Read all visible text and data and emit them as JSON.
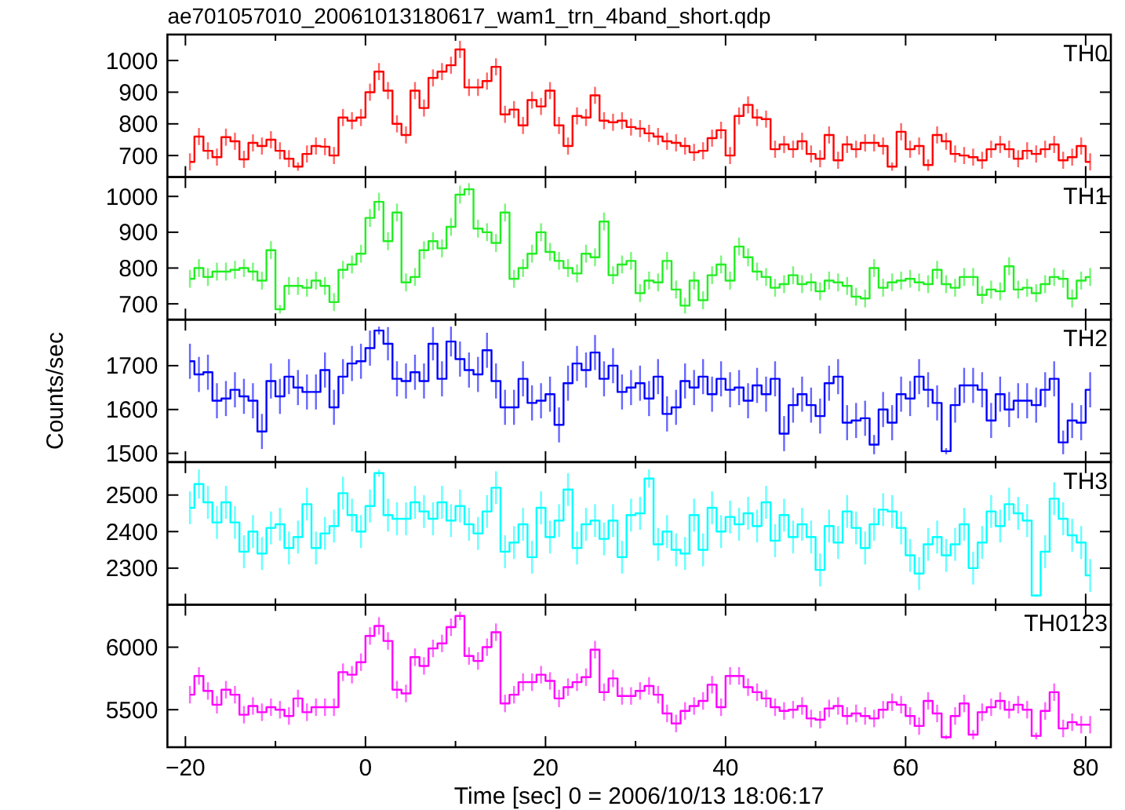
{
  "chart_data": [
    {
      "type": "step",
      "title": "ae701057010_20061013180617_wam1_trn_4band_short.qdp",
      "x": [
        -19.5,
        -18.5,
        -17.5,
        -16.5,
        -15.5,
        -14.5,
        -13.5,
        -12.5,
        -11.5,
        -10.5,
        -9.5,
        -8.5,
        -7.5,
        -6.5,
        -5.5,
        -4.5,
        -3.5,
        -2.5,
        -1.5,
        -0.5,
        0.5,
        1.5,
        2.5,
        3.5,
        4.5,
        5.5,
        6.5,
        7.5,
        8.5,
        9.5,
        10.5,
        11.5,
        12.5,
        13.5,
        14.5,
        15.5,
        16.5,
        17.5,
        18.5,
        19.5,
        20.5,
        21.5,
        22.5,
        23.5,
        24.5,
        25.5,
        26.5,
        27.5,
        28.5,
        29.5,
        30.5,
        31.5,
        32.5,
        33.5,
        34.5,
        35.5,
        36.5,
        37.5,
        38.5,
        39.5,
        40.5,
        41.5,
        42.5,
        43.5,
        44.5,
        45.5,
        46.5,
        47.5,
        48.5,
        49.5,
        50.5,
        51.5,
        52.5,
        53.5,
        54.5,
        55.5,
        56.5,
        57.5,
        58.5,
        59.5,
        60.5,
        61.5,
        62.5,
        63.5,
        64.5,
        65.5,
        66.5,
        67.5,
        68.5,
        69.5,
        70.5,
        71.5,
        72.5,
        73.5,
        74.5,
        75.5,
        76.5,
        77.5,
        78.5,
        79.5,
        80.5
      ],
      "series": [
        {
          "name": "TH0",
          "color": "#ff0000",
          "values": [
            680,
            760,
            715,
            695,
            758,
            745,
            688,
            740,
            730,
            750,
            715,
            690,
            665,
            705,
            730,
            728,
            700,
            820,
            810,
            820,
            900,
            965,
            905,
            800,
            765,
            905,
            850,
            945,
            965,
            985,
            1035,
            915,
            915,
            935,
            980,
            830,
            845,
            795,
            875,
            855,
            905,
            795,
            730,
            825,
            820,
            890,
            810,
            805,
            810,
            790,
            785,
            770,
            760,
            745,
            740,
            730,
            710,
            715,
            755,
            780,
            700,
            825,
            860,
            820,
            815,
            720,
            735,
            720,
            745,
            705,
            690,
            765,
            685,
            735,
            720,
            740,
            740,
            730,
            665,
            775,
            720,
            730,
            670,
            765,
            745,
            705,
            700,
            695,
            685,
            720,
            735,
            720,
            690,
            715,
            705,
            720,
            735,
            685,
            695,
            730,
            680
          ],
          "errors": [
            27,
            27,
            27,
            27,
            27,
            27,
            27,
            27,
            27,
            27,
            27,
            27,
            13,
            27,
            27,
            27,
            27,
            27,
            27,
            27,
            27,
            27,
            27,
            27,
            27,
            27,
            27,
            27,
            27,
            27,
            27,
            27,
            27,
            27,
            27,
            27,
            27,
            27,
            27,
            27,
            27,
            27,
            27,
            27,
            27,
            27,
            27,
            27,
            27,
            27,
            27,
            27,
            27,
            27,
            27,
            27,
            27,
            27,
            27,
            27,
            27,
            27,
            27,
            27,
            27,
            27,
            27,
            27,
            27,
            27,
            27,
            27,
            27,
            27,
            27,
            27,
            27,
            27,
            13,
            27,
            27,
            27,
            18,
            27,
            27,
            27,
            27,
            27,
            27,
            27,
            27,
            27,
            27,
            27,
            27,
            27,
            27,
            27,
            27,
            27,
            27
          ]
        }
      ],
      "xlim": [
        -22,
        82.8
      ],
      "xticks": [
        -20,
        {
          "value": -10,
          "label": null
        },
        0,
        {
          "value": 10,
          "label": null
        },
        20,
        {
          "value": 30,
          "label": null
        },
        40,
        {
          "value": 50,
          "label": null
        },
        60,
        {
          "value": 70,
          "label": null
        },
        80
      ],
      "ylim": [
        632,
        1082
      ],
      "yticks": [
        700,
        800,
        900,
        1000
      ],
      "tick_labels": "y"
    },
    {
      "type": "step",
      "x": [
        -19.5,
        -18.5,
        -17.5,
        -16.5,
        -15.5,
        -14.5,
        -13.5,
        -12.5,
        -11.5,
        -10.5,
        -9.5,
        -8.5,
        -7.5,
        -6.5,
        -5.5,
        -4.5,
        -3.5,
        -2.5,
        -1.5,
        -0.5,
        0.5,
        1.5,
        2.5,
        3.5,
        4.5,
        5.5,
        6.5,
        7.5,
        8.5,
        9.5,
        10.5,
        11.5,
        12.5,
        13.5,
        14.5,
        15.5,
        16.5,
        17.5,
        18.5,
        19.5,
        20.5,
        21.5,
        22.5,
        23.5,
        24.5,
        25.5,
        26.5,
        27.5,
        28.5,
        29.5,
        30.5,
        31.5,
        32.5,
        33.5,
        34.5,
        35.5,
        36.5,
        37.5,
        38.5,
        39.5,
        40.5,
        41.5,
        42.5,
        43.5,
        44.5,
        45.5,
        46.5,
        47.5,
        48.5,
        49.5,
        50.5,
        51.5,
        52.5,
        53.5,
        54.5,
        55.5,
        56.5,
        57.5,
        58.5,
        59.5,
        60.5,
        61.5,
        62.5,
        63.5,
        64.5,
        65.5,
        66.5,
        67.5,
        68.5,
        69.5,
        70.5,
        71.5,
        72.5,
        73.5,
        74.5,
        75.5,
        76.5,
        77.5,
        78.5,
        79.5,
        80.5
      ],
      "series": [
        {
          "name": "TH1",
          "color": "#22ee22",
          "values": [
            770,
            800,
            775,
            790,
            790,
            795,
            800,
            790,
            765,
            850,
            685,
            750,
            750,
            745,
            765,
            750,
            705,
            795,
            810,
            840,
            940,
            985,
            875,
            955,
            760,
            775,
            850,
            875,
            855,
            915,
            1005,
            1020,
            910,
            900,
            870,
            955,
            770,
            800,
            840,
            900,
            845,
            820,
            800,
            785,
            840,
            830,
            930,
            780,
            810,
            820,
            730,
            765,
            760,
            820,
            740,
            695,
            765,
            710,
            780,
            810,
            765,
            860,
            830,
            790,
            775,
            745,
            755,
            780,
            755,
            760,
            735,
            765,
            760,
            750,
            720,
            715,
            800,
            745,
            760,
            765,
            770,
            760,
            755,
            795,
            755,
            745,
            775,
            775,
            725,
            740,
            735,
            805,
            740,
            745,
            730,
            755,
            775,
            770,
            715,
            765,
            775
          ],
          "errors": [
            25,
            25,
            25,
            25,
            25,
            25,
            25,
            25,
            25,
            25,
            12,
            25,
            25,
            25,
            25,
            25,
            25,
            25,
            25,
            25,
            25,
            25,
            25,
            25,
            25,
            25,
            25,
            25,
            25,
            25,
            25,
            17,
            25,
            25,
            25,
            25,
            25,
            25,
            25,
            25,
            25,
            25,
            25,
            25,
            25,
            25,
            25,
            25,
            25,
            25,
            25,
            25,
            25,
            25,
            25,
            22,
            25,
            25,
            25,
            25,
            25,
            25,
            25,
            25,
            25,
            25,
            25,
            25,
            25,
            25,
            25,
            25,
            25,
            25,
            25,
            25,
            25,
            25,
            25,
            25,
            25,
            25,
            25,
            25,
            25,
            25,
            25,
            25,
            25,
            25,
            25,
            25,
            25,
            25,
            25,
            25,
            25,
            25,
            25,
            25,
            25
          ]
        }
      ],
      "xlim": [
        -22,
        82.8
      ],
      "xticks": [
        -20,
        {
          "value": -10,
          "label": null
        },
        0,
        {
          "value": 10,
          "label": null
        },
        20,
        {
          "value": 30,
          "label": null
        },
        40,
        {
          "value": 50,
          "label": null
        },
        60,
        {
          "value": 70,
          "label": null
        },
        80
      ],
      "ylim": [
        656,
        1054
      ],
      "yticks": [
        700,
        800,
        900,
        1000
      ],
      "tick_labels": "y"
    },
    {
      "type": "step",
      "ylabel": "Counts/sec",
      "x": [
        -19.5,
        -18.5,
        -17.5,
        -16.5,
        -15.5,
        -14.5,
        -13.5,
        -12.5,
        -11.5,
        -10.5,
        -9.5,
        -8.5,
        -7.5,
        -6.5,
        -5.5,
        -4.5,
        -3.5,
        -2.5,
        -1.5,
        -0.5,
        0.5,
        1.5,
        2.5,
        3.5,
        4.5,
        5.5,
        6.5,
        7.5,
        8.5,
        9.5,
        10.5,
        11.5,
        12.5,
        13.5,
        14.5,
        15.5,
        16.5,
        17.5,
        18.5,
        19.5,
        20.5,
        21.5,
        22.5,
        23.5,
        24.5,
        25.5,
        26.5,
        27.5,
        28.5,
        29.5,
        30.5,
        31.5,
        32.5,
        33.5,
        34.5,
        35.5,
        36.5,
        37.5,
        38.5,
        39.5,
        40.5,
        41.5,
        42.5,
        43.5,
        44.5,
        45.5,
        46.5,
        47.5,
        48.5,
        49.5,
        50.5,
        51.5,
        52.5,
        53.5,
        54.5,
        55.5,
        56.5,
        57.5,
        58.5,
        59.5,
        60.5,
        61.5,
        62.5,
        63.5,
        64.5,
        65.5,
        66.5,
        67.5,
        68.5,
        69.5,
        70.5,
        71.5,
        72.5,
        73.5,
        74.5,
        75.5,
        76.5,
        77.5,
        78.5,
        79.5,
        80.5
      ],
      "series": [
        {
          "name": "TH2",
          "color": "#0000ff",
          "values": [
            1710,
            1680,
            1685,
            1620,
            1625,
            1645,
            1630,
            1620,
            1550,
            1665,
            1630,
            1675,
            1650,
            1640,
            1640,
            1690,
            1605,
            1675,
            1705,
            1710,
            1740,
            1780,
            1750,
            1670,
            1665,
            1685,
            1665,
            1750,
            1670,
            1755,
            1715,
            1690,
            1680,
            1735,
            1665,
            1605,
            1605,
            1670,
            1615,
            1620,
            1635,
            1565,
            1660,
            1705,
            1690,
            1730,
            1670,
            1700,
            1640,
            1650,
            1660,
            1625,
            1675,
            1590,
            1605,
            1665,
            1650,
            1675,
            1635,
            1670,
            1645,
            1650,
            1620,
            1655,
            1635,
            1670,
            1545,
            1610,
            1635,
            1610,
            1585,
            1660,
            1675,
            1570,
            1575,
            1580,
            1520,
            1600,
            1570,
            1635,
            1625,
            1675,
            1645,
            1615,
            1505,
            1610,
            1655,
            1655,
            1645,
            1575,
            1635,
            1600,
            1620,
            1620,
            1610,
            1645,
            1670,
            1525,
            1575,
            1570,
            1645
          ],
          "errors": [
            40,
            40,
            40,
            40,
            40,
            40,
            40,
            40,
            40,
            40,
            40,
            40,
            40,
            40,
            40,
            40,
            40,
            40,
            40,
            40,
            40,
            9,
            38,
            40,
            40,
            40,
            40,
            38,
            40,
            34,
            40,
            40,
            40,
            40,
            40,
            40,
            40,
            40,
            40,
            40,
            40,
            40,
            40,
            40,
            40,
            40,
            40,
            40,
            40,
            40,
            40,
            40,
            40,
            40,
            40,
            40,
            40,
            40,
            40,
            40,
            40,
            40,
            40,
            40,
            40,
            40,
            40,
            40,
            40,
            40,
            40,
            40,
            40,
            40,
            40,
            40,
            22,
            40,
            40,
            40,
            40,
            40,
            40,
            40,
            7,
            40,
            40,
            40,
            40,
            40,
            40,
            40,
            40,
            40,
            40,
            40,
            40,
            27,
            40,
            40,
            40
          ]
        }
      ],
      "xlim": [
        -22,
        82.8
      ],
      "xticks": [
        -20,
        {
          "value": -10,
          "label": null
        },
        0,
        {
          "value": 10,
          "label": null
        },
        20,
        {
          "value": 30,
          "label": null
        },
        40,
        {
          "value": 50,
          "label": null
        },
        60,
        {
          "value": 70,
          "label": null
        },
        80
      ],
      "ylim": [
        1480,
        1805
      ],
      "yticks": [
        1500,
        1600,
        1700
      ],
      "tick_labels": "y"
    },
    {
      "type": "step",
      "x": [
        -19.5,
        -18.5,
        -17.5,
        -16.5,
        -15.5,
        -14.5,
        -13.5,
        -12.5,
        -11.5,
        -10.5,
        -9.5,
        -8.5,
        -7.5,
        -6.5,
        -5.5,
        -4.5,
        -3.5,
        -2.5,
        -1.5,
        -0.5,
        0.5,
        1.5,
        2.5,
        3.5,
        4.5,
        5.5,
        6.5,
        7.5,
        8.5,
        9.5,
        10.5,
        11.5,
        12.5,
        13.5,
        14.5,
        15.5,
        16.5,
        17.5,
        18.5,
        19.5,
        20.5,
        21.5,
        22.5,
        23.5,
        24.5,
        25.5,
        26.5,
        27.5,
        28.5,
        29.5,
        30.5,
        31.5,
        32.5,
        33.5,
        34.5,
        35.5,
        36.5,
        37.5,
        38.5,
        39.5,
        40.5,
        41.5,
        42.5,
        43.5,
        44.5,
        45.5,
        46.5,
        47.5,
        48.5,
        49.5,
        50.5,
        51.5,
        52.5,
        53.5,
        54.5,
        55.5,
        56.5,
        57.5,
        58.5,
        59.5,
        60.5,
        61.5,
        62.5,
        63.5,
        64.5,
        65.5,
        66.5,
        67.5,
        68.5,
        69.5,
        70.5,
        71.5,
        72.5,
        73.5,
        74.5,
        75.5,
        76.5,
        77.5,
        78.5,
        79.5,
        80.5
      ],
      "series": [
        {
          "name": "TH3",
          "color": "#00ffff",
          "values": [
            2465,
            2530,
            2480,
            2425,
            2480,
            2425,
            2345,
            2400,
            2340,
            2410,
            2420,
            2355,
            2385,
            2475,
            2355,
            2395,
            2415,
            2505,
            2445,
            2400,
            2470,
            2560,
            2445,
            2435,
            2435,
            2480,
            2455,
            2435,
            2480,
            2430,
            2470,
            2420,
            2395,
            2455,
            2520,
            2345,
            2370,
            2420,
            2330,
            2465,
            2385,
            2430,
            2515,
            2355,
            2420,
            2430,
            2380,
            2430,
            2330,
            2445,
            2450,
            2545,
            2365,
            2400,
            2350,
            2340,
            2445,
            2350,
            2465,
            2400,
            2440,
            2420,
            2450,
            2415,
            2480,
            2375,
            2445,
            2385,
            2420,
            2385,
            2295,
            2415,
            2370,
            2455,
            2410,
            2355,
            2420,
            2460,
            2455,
            2410,
            2335,
            2285,
            2365,
            2385,
            2335,
            2365,
            2420,
            2300,
            2370,
            2455,
            2415,
            2475,
            2450,
            2430,
            2225,
            2345,
            2490,
            2435,
            2390,
            2370,
            2280
          ],
          "errors": [
            45,
            40,
            45,
            45,
            45,
            45,
            45,
            45,
            45,
            45,
            45,
            45,
            45,
            45,
            45,
            45,
            45,
            45,
            45,
            45,
            45,
            10,
            45,
            45,
            45,
            45,
            45,
            45,
            45,
            45,
            45,
            45,
            45,
            45,
            45,
            45,
            45,
            45,
            45,
            45,
            45,
            45,
            45,
            45,
            45,
            45,
            45,
            45,
            45,
            45,
            45,
            25,
            45,
            45,
            45,
            45,
            45,
            45,
            45,
            45,
            45,
            45,
            45,
            45,
            45,
            45,
            45,
            45,
            45,
            45,
            45,
            45,
            45,
            45,
            45,
            45,
            45,
            45,
            45,
            45,
            45,
            45,
            45,
            45,
            45,
            45,
            45,
            45,
            45,
            45,
            45,
            45,
            45,
            45,
            4,
            45,
            45,
            45,
            45,
            45,
            45
          ]
        }
      ],
      "xlim": [
        -22,
        82.8
      ],
      "xticks": [
        -20,
        {
          "value": -10,
          "label": null
        },
        0,
        {
          "value": 10,
          "label": null
        },
        20,
        {
          "value": 30,
          "label": null
        },
        40,
        {
          "value": 50,
          "label": null
        },
        60,
        {
          "value": 70,
          "label": null
        },
        80
      ],
      "ylim": [
        2200,
        2590
      ],
      "yticks": [
        2300,
        2400,
        2500
      ],
      "tick_labels": "y"
    },
    {
      "type": "step",
      "xlabel": "Time [sec] 0 = 2006/10/13 18:06:17",
      "x": [
        -19.5,
        -18.5,
        -17.5,
        -16.5,
        -15.5,
        -14.5,
        -13.5,
        -12.5,
        -11.5,
        -10.5,
        -9.5,
        -8.5,
        -7.5,
        -6.5,
        -5.5,
        -4.5,
        -3.5,
        -2.5,
        -1.5,
        -0.5,
        0.5,
        1.5,
        2.5,
        3.5,
        4.5,
        5.5,
        6.5,
        7.5,
        8.5,
        9.5,
        10.5,
        11.5,
        12.5,
        13.5,
        14.5,
        15.5,
        16.5,
        17.5,
        18.5,
        19.5,
        20.5,
        21.5,
        22.5,
        23.5,
        24.5,
        25.5,
        26.5,
        27.5,
        28.5,
        29.5,
        30.5,
        31.5,
        32.5,
        33.5,
        34.5,
        35.5,
        36.5,
        37.5,
        38.5,
        39.5,
        40.5,
        41.5,
        42.5,
        43.5,
        44.5,
        45.5,
        46.5,
        47.5,
        48.5,
        49.5,
        50.5,
        51.5,
        52.5,
        53.5,
        54.5,
        55.5,
        56.5,
        57.5,
        58.5,
        59.5,
        60.5,
        61.5,
        62.5,
        63.5,
        64.5,
        65.5,
        66.5,
        67.5,
        68.5,
        69.5,
        70.5,
        71.5,
        72.5,
        73.5,
        74.5,
        75.5,
        76.5,
        77.5,
        78.5,
        79.5,
        80.5
      ],
      "series": [
        {
          "name": "TH0123",
          "color": "#ff00ff",
          "values": [
            5620,
            5770,
            5650,
            5540,
            5660,
            5620,
            5460,
            5530,
            5480,
            5520,
            5500,
            5450,
            5590,
            5480,
            5520,
            5520,
            5520,
            5800,
            5780,
            5880,
            6090,
            6170,
            6050,
            5660,
            5630,
            5920,
            5850,
            5990,
            6030,
            6160,
            6250,
            5930,
            5890,
            6000,
            6120,
            5550,
            5620,
            5720,
            5720,
            5780,
            5730,
            5590,
            5680,
            5720,
            5760,
            5980,
            5640,
            5750,
            5610,
            5610,
            5650,
            5690,
            5620,
            5470,
            5390,
            5490,
            5530,
            5570,
            5700,
            5520,
            5770,
            5770,
            5680,
            5640,
            5590,
            5520,
            5490,
            5500,
            5530,
            5430,
            5420,
            5510,
            5530,
            5450,
            5470,
            5450,
            5430,
            5500,
            5560,
            5540,
            5450,
            5370,
            5570,
            5470,
            5280,
            5450,
            5550,
            5300,
            5480,
            5520,
            5570,
            5500,
            5540,
            5500,
            5290,
            5490,
            5640,
            5350,
            5400,
            5380,
            5380
          ],
          "errors": [
            70,
            70,
            70,
            70,
            70,
            70,
            70,
            70,
            70,
            70,
            70,
            70,
            70,
            70,
            70,
            70,
            70,
            70,
            70,
            70,
            70,
            70,
            70,
            70,
            70,
            70,
            70,
            70,
            70,
            70,
            34,
            70,
            70,
            70,
            70,
            70,
            70,
            70,
            70,
            70,
            70,
            70,
            70,
            70,
            70,
            70,
            70,
            70,
            70,
            70,
            70,
            70,
            70,
            70,
            70,
            70,
            70,
            70,
            70,
            70,
            70,
            70,
            70,
            70,
            70,
            70,
            70,
            70,
            70,
            70,
            70,
            70,
            70,
            70,
            70,
            70,
            70,
            70,
            70,
            70,
            70,
            70,
            70,
            70,
            17,
            70,
            70,
            37,
            70,
            70,
            70,
            70,
            70,
            70,
            27,
            70,
            70,
            70,
            70,
            70,
            70
          ]
        }
      ],
      "xlim": [
        -22,
        82.8
      ],
      "xticks": [
        -20,
        {
          "value": -10,
          "label": null
        },
        0,
        {
          "value": 10,
          "label": null
        },
        20,
        {
          "value": 30,
          "label": null
        },
        40,
        {
          "value": 50,
          "label": null
        },
        60,
        {
          "value": 70,
          "label": null
        },
        80
      ],
      "ylim": [
        5200,
        6340
      ],
      "yticks": [
        5500,
        6000
      ]
    }
  ]
}
